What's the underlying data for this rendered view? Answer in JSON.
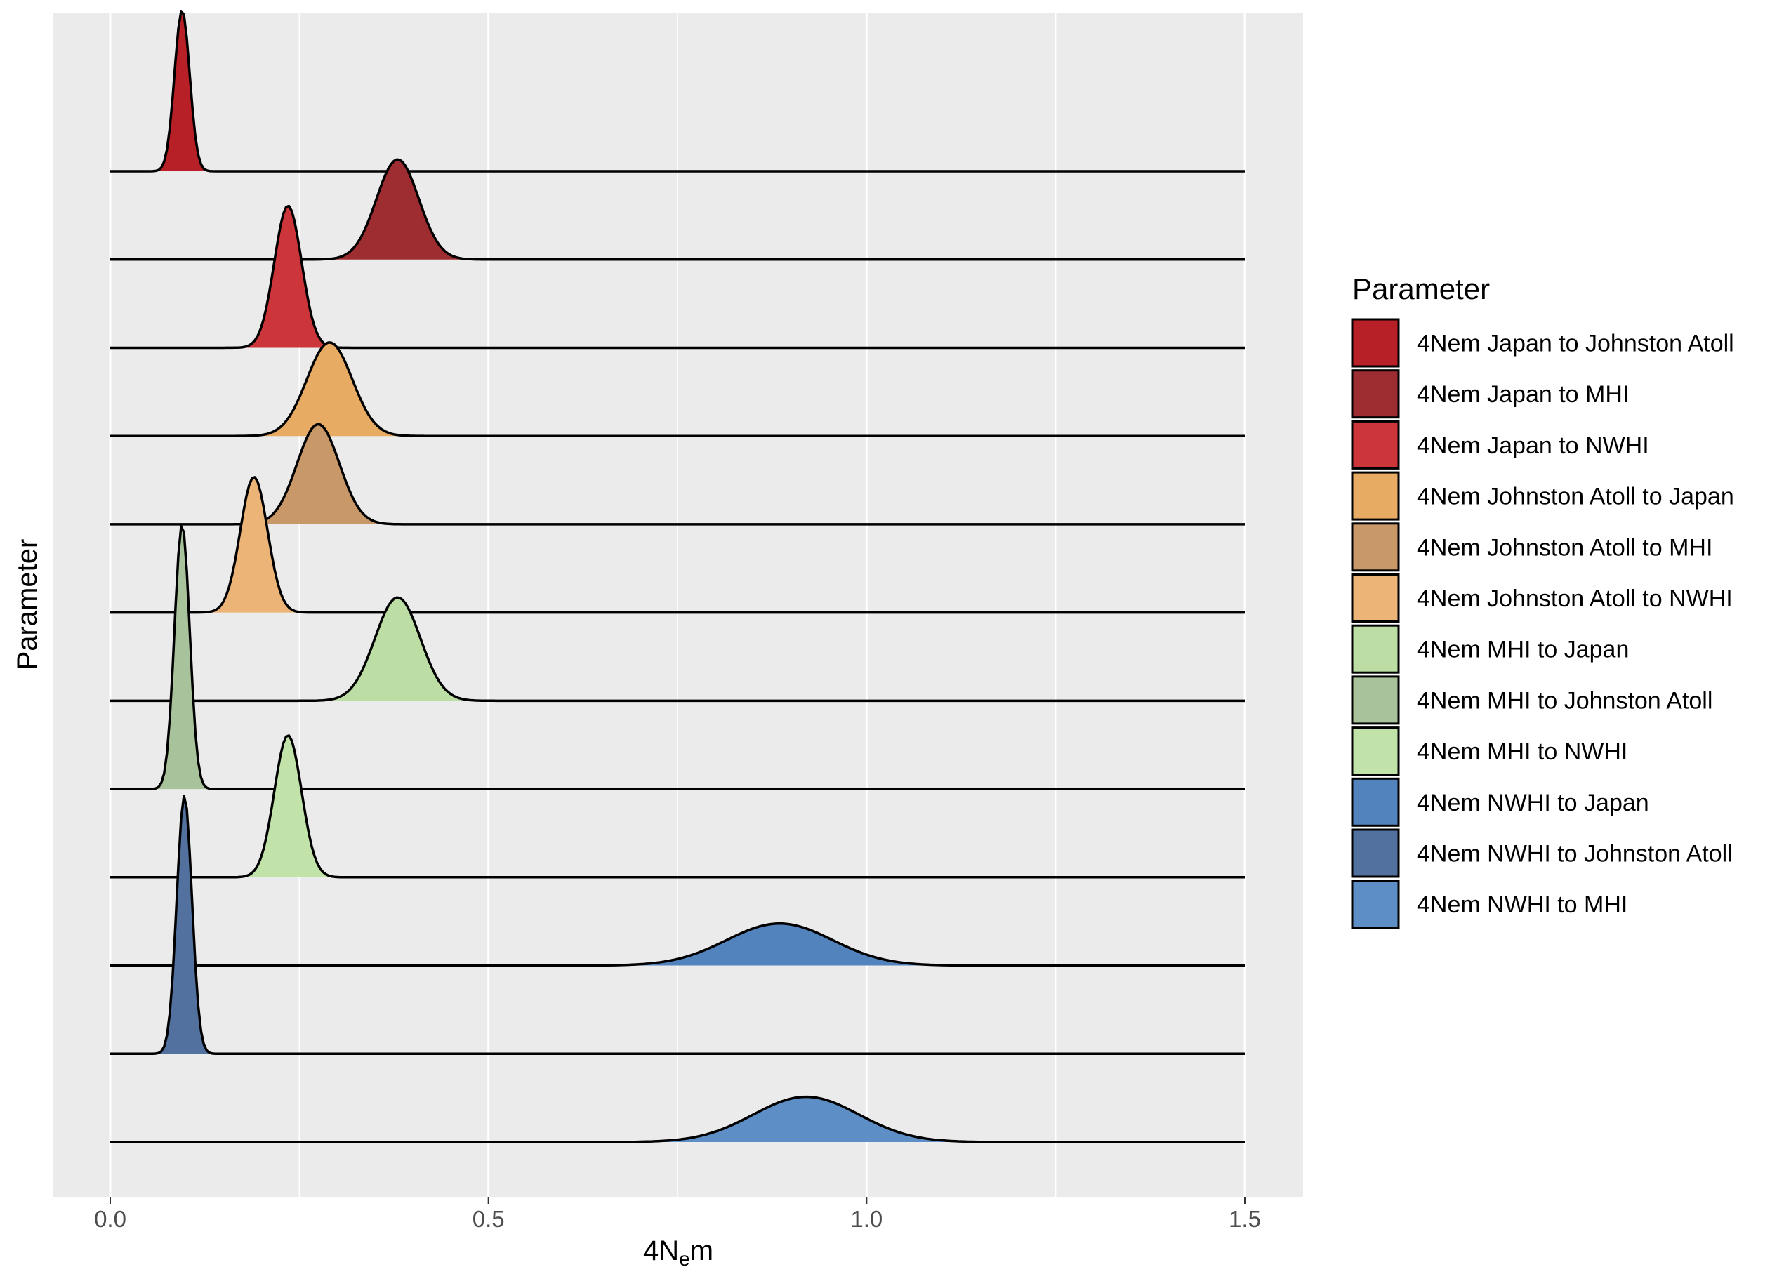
{
  "chart_data": {
    "type": "ridgeline",
    "title": "",
    "xlabel_main": "4N",
    "xlabel_sub": "e",
    "xlabel_tail": "m",
    "ylabel": "Parameter",
    "xlim": [
      0.0,
      1.5
    ],
    "x_ticks": [
      0.0,
      0.5,
      1.0,
      1.5
    ],
    "x_tick_labels": [
      "0.0",
      "0.5",
      "1.0",
      "1.5"
    ],
    "grid": true,
    "background": "#ebebeb",
    "legend": {
      "title": "Parameter",
      "placement": "right"
    },
    "series": [
      {
        "name": "4Nem Japan to Johnston Atoll",
        "color": "#b72026",
        "mean": 0.095,
        "sd": 0.01,
        "peak": 1.0
      },
      {
        "name": "4Nem Japan to MHI",
        "color": "#9e2d31",
        "mean": 0.38,
        "sd": 0.028,
        "peak": 0.62
      },
      {
        "name": "4Nem Japan to NWHI",
        "color": "#cc363a",
        "mean": 0.235,
        "sd": 0.018,
        "peak": 0.88
      },
      {
        "name": "4Nem Johnston Atoll to Japan",
        "color": "#e8ab63",
        "mean": 0.29,
        "sd": 0.03,
        "peak": 0.58
      },
      {
        "name": "4Nem Johnston Atoll to MHI",
        "color": "#c99868",
        "mean": 0.275,
        "sd": 0.028,
        "peak": 0.62
      },
      {
        "name": "4Nem Johnston Atoll to NWHI",
        "color": "#edb477",
        "mean": 0.19,
        "sd": 0.018,
        "peak": 0.84
      },
      {
        "name": "4Nem MHI to Japan",
        "color": "#bcdea5",
        "mean": 0.38,
        "sd": 0.03,
        "peak": 0.64
      },
      {
        "name": "4Nem MHI to Johnston Atoll",
        "color": "#a8c39b",
        "mean": 0.095,
        "sd": 0.01,
        "peak": 1.64
      },
      {
        "name": "4Nem MHI to NWHI",
        "color": "#c1e3a9",
        "mean": 0.235,
        "sd": 0.018,
        "peak": 0.88
      },
      {
        "name": "4Nem NWHI to Japan",
        "color": "#5383bc",
        "mean": 0.885,
        "sd": 0.07,
        "peak": 0.26
      },
      {
        "name": "4Nem NWHI to Johnston Atoll",
        "color": "#52719e",
        "mean": 0.098,
        "sd": 0.01,
        "peak": 1.6
      },
      {
        "name": "4Nem NWHI to MHI",
        "color": "#5d8ec5",
        "mean": 0.92,
        "sd": 0.07,
        "peak": 0.28
      }
    ]
  }
}
